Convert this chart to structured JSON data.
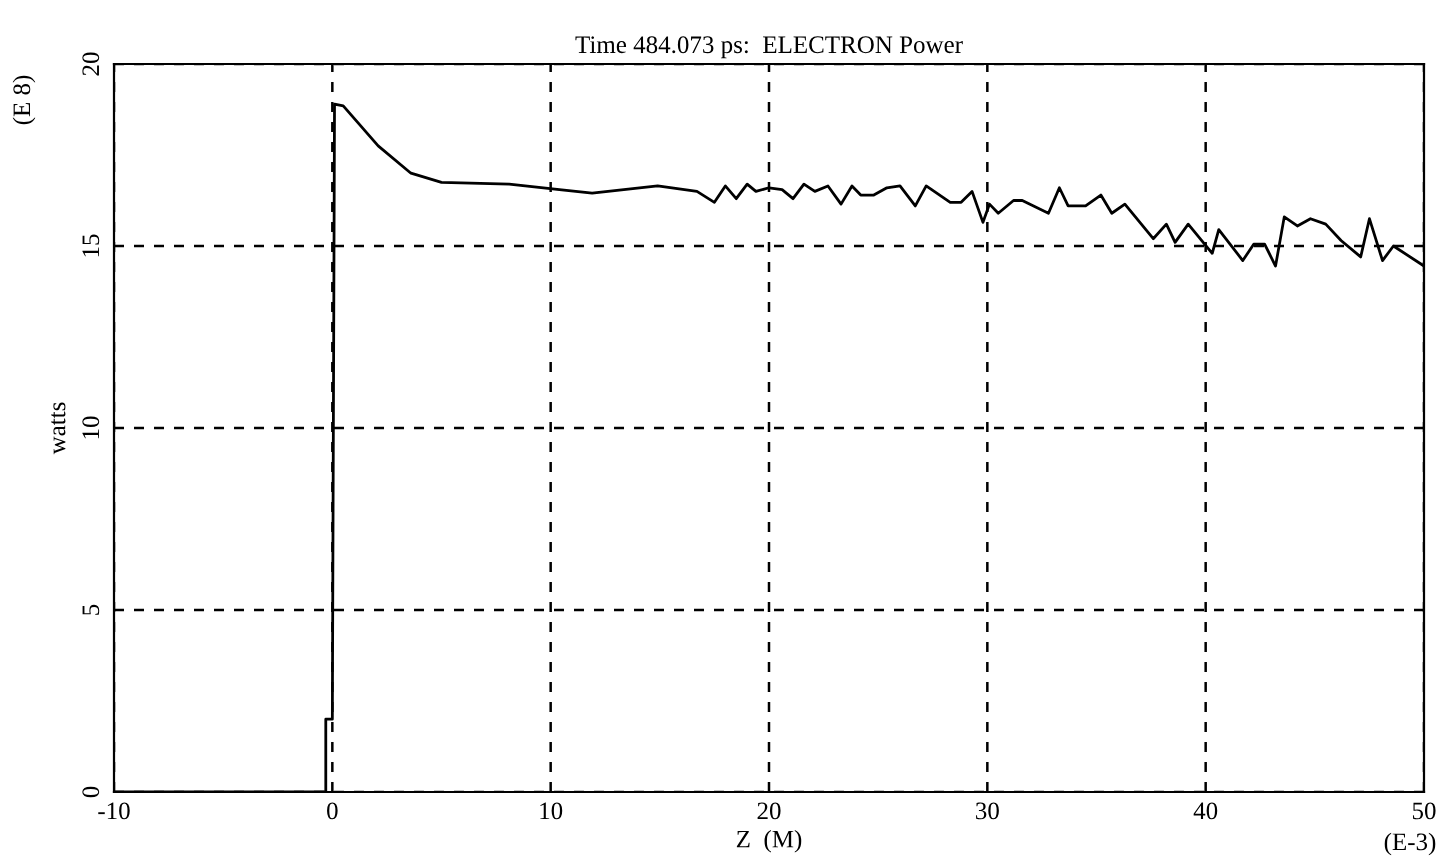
{
  "chart_data": {
    "type": "line",
    "title": "Time 484.073 ps:  ELECTRON Power",
    "xlabel": "Z  (M)",
    "ylabel": "watts",
    "annotations": [
      "(E 8)",
      "(E-3)"
    ],
    "series": [
      {
        "color": "#000000",
        "x": [
          -10,
          -0.3,
          -0.3,
          0.0,
          0.1,
          0.5,
          2.1,
          3.6,
          5.0,
          8.1,
          10.4,
          11.9,
          14.9,
          16.7,
          17.5,
          18.0,
          18.5,
          19.0,
          19.4,
          20.0,
          20.6,
          21.1,
          21.6,
          22.1,
          22.7,
          23.3,
          23.8,
          24.2,
          24.8,
          25.4,
          26.0,
          26.7,
          27.2,
          28.3,
          28.8,
          29.3,
          29.8,
          30.1,
          30.5,
          31.2,
          31.6,
          32.8,
          33.3,
          33.7,
          34.5,
          35.2,
          35.7,
          36.3,
          37.6,
          38.2,
          38.6,
          39.2,
          40.3,
          40.6,
          41.7,
          42.2,
          42.7,
          43.2,
          43.6,
          44.2,
          44.8,
          45.5,
          46.2,
          47.1,
          47.5,
          48.1,
          48.6,
          50.0
        ],
        "values": [
          0,
          0,
          2.0,
          2.0,
          18.9,
          18.85,
          17.75,
          17.0,
          16.75,
          16.7,
          16.55,
          16.45,
          16.65,
          16.5,
          16.2,
          16.65,
          16.3,
          16.7,
          16.5,
          16.6,
          16.55,
          16.3,
          16.7,
          16.5,
          16.65,
          16.15,
          16.65,
          16.4,
          16.4,
          16.6,
          16.65,
          16.1,
          16.65,
          16.2,
          16.2,
          16.5,
          15.65,
          16.15,
          15.9,
          16.25,
          16.25,
          15.9,
          16.6,
          16.1,
          16.1,
          16.4,
          15.9,
          16.15,
          15.2,
          15.6,
          15.1,
          15.6,
          14.8,
          15.45,
          14.6,
          15.05,
          15.05,
          14.45,
          15.8,
          15.55,
          15.75,
          15.6,
          15.15,
          14.7,
          15.75,
          14.6,
          15.0,
          14.45
        ]
      }
    ],
    "xlim": [
      -10,
      50
    ],
    "xticks": [
      -10,
      0,
      10,
      20,
      30,
      40,
      50
    ],
    "ylim": [
      0,
      20
    ],
    "yticks": [
      0,
      5,
      10,
      15,
      20
    ],
    "grid": true,
    "line_style": "solid",
    "marker": "none",
    "legend": false
  }
}
